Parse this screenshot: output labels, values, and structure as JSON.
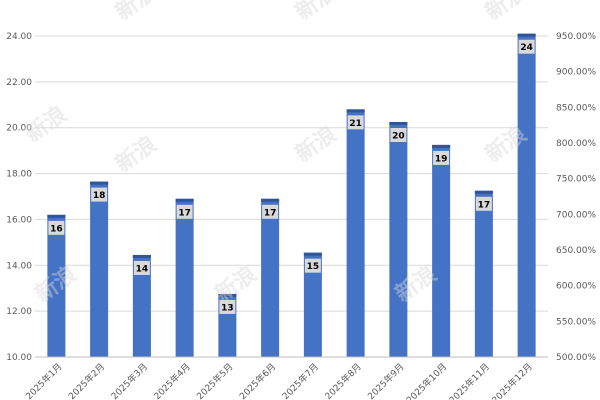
{
  "chart_data": {
    "type": "bar",
    "categories": [
      "2025年1月",
      "2025年2月",
      "2025年3月",
      "2025年4月",
      "2025年5月",
      "2025年6月",
      "2025年7月",
      "2025年8月",
      "2025年9月",
      "2025年10月",
      "2025年11月",
      "2025年12月"
    ],
    "values": [
      16.2,
      17.65,
      14.45,
      16.9,
      12.75,
      16.9,
      14.55,
      20.8,
      20.25,
      19.25,
      17.25,
      24.1
    ],
    "data_labels": [
      "16",
      "18",
      "14",
      "17",
      "13",
      "17",
      "15",
      "21",
      "20",
      "19",
      "17",
      "24"
    ],
    "ylim": [
      10,
      24
    ],
    "y_ticks": [
      "10.00",
      "12.00",
      "14.00",
      "16.00",
      "18.00",
      "20.00",
      "22.00",
      "24.00"
    ],
    "y2lim": [
      500,
      950
    ],
    "y2_ticks": [
      "500.00%",
      "550.00%",
      "600.00%",
      "650.00%",
      "700.00%",
      "750.00%",
      "800.00%",
      "850.00%",
      "900.00%",
      "950.00%"
    ],
    "grid": true,
    "title": "",
    "xlabel": "",
    "ylabel": "",
    "colors": {
      "bar": "#4472C4",
      "bar_cap": "#2F5597",
      "label_box": "#D9D9D9",
      "grid": "#D9D9D9",
      "axis": "#BFBFBF"
    }
  },
  "watermark": {
    "text": "新浪"
  }
}
